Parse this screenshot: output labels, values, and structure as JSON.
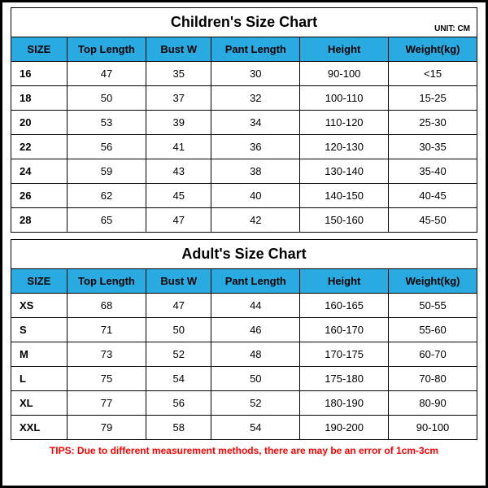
{
  "colors": {
    "header_bg": "#29abe2",
    "border": "#000000",
    "tips_color": "#ff0000",
    "bg": "#ffffff"
  },
  "tips": "TIPS: Due to different measurement methods, there are may be an error of 1cm-3cm",
  "children": {
    "title": "Children's Size Chart",
    "unit": "UNIT: CM",
    "columns": [
      "SIZE",
      "Top Length",
      "Bust W",
      "Pant Length",
      "Height",
      "Weight(kg)"
    ],
    "rows": [
      [
        "16",
        "47",
        "35",
        "30",
        "90-100",
        "<15"
      ],
      [
        "18",
        "50",
        "37",
        "32",
        "100-110",
        "15-25"
      ],
      [
        "20",
        "53",
        "39",
        "34",
        "110-120",
        "25-30"
      ],
      [
        "22",
        "56",
        "41",
        "36",
        "120-130",
        "30-35"
      ],
      [
        "24",
        "59",
        "43",
        "38",
        "130-140",
        "35-40"
      ],
      [
        "26",
        "62",
        "45",
        "40",
        "140-150",
        "40-45"
      ],
      [
        "28",
        "65",
        "47",
        "42",
        "150-160",
        "45-50"
      ]
    ]
  },
  "adult": {
    "title": "Adult's Size Chart",
    "columns": [
      "SIZE",
      "Top Length",
      "Bust W",
      "Pant Length",
      "Height",
      "Weight(kg)"
    ],
    "rows": [
      [
        "XS",
        "68",
        "47",
        "44",
        "160-165",
        "50-55"
      ],
      [
        "S",
        "71",
        "50",
        "46",
        "160-170",
        "55-60"
      ],
      [
        "M",
        "73",
        "52",
        "48",
        "170-175",
        "60-70"
      ],
      [
        "L",
        "75",
        "54",
        "50",
        "175-180",
        "70-80"
      ],
      [
        "XL",
        "77",
        "56",
        "52",
        "180-190",
        "80-90"
      ],
      [
        "XXL",
        "79",
        "58",
        "54",
        "190-200",
        "90-100"
      ]
    ]
  }
}
